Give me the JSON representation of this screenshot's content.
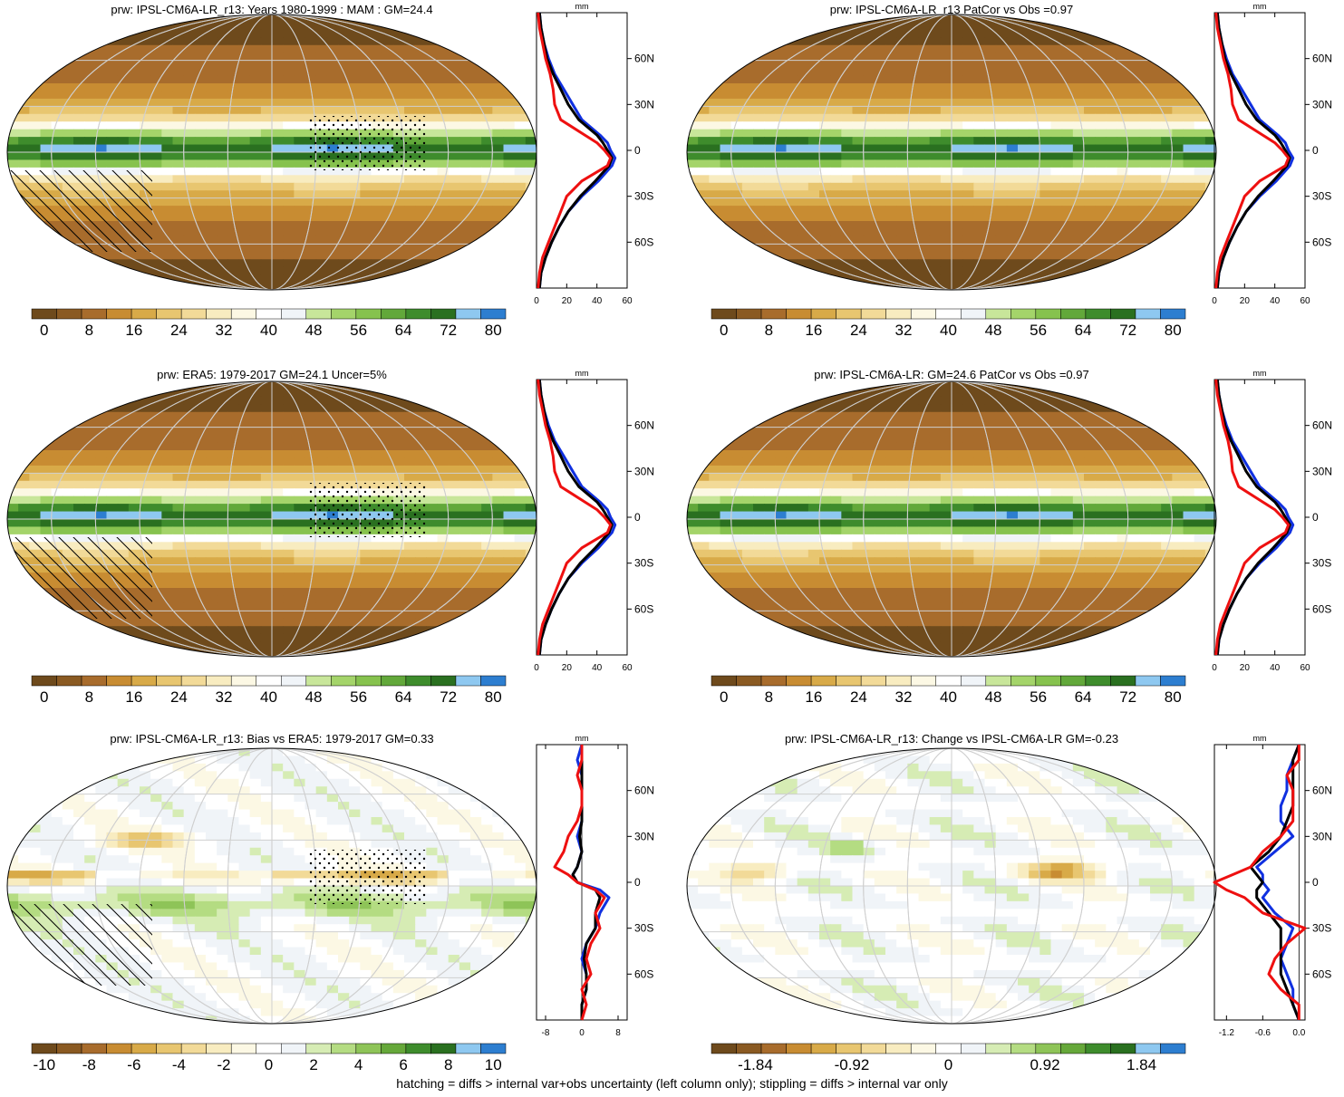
{
  "footnote": "hatching = diffs > internal var+obs uncertainty (left column only); stippling = diffs > internal var only",
  "zonal_lat_labels": [
    "60N",
    "30N",
    "0",
    "30S",
    "60S"
  ],
  "zonal_units": "mm",
  "line_colors": {
    "blue": "#1030e0",
    "black": "#000000",
    "red": "#ee1010"
  },
  "palettes": {
    "abs": [
      "#6e4a1c",
      "#8a5a22",
      "#a86c2c",
      "#c88c32",
      "#d8aa48",
      "#e8c670",
      "#f2da98",
      "#f8ecc0",
      "#fcf8e4",
      "#ffffff",
      "#f0f4f8",
      "#c8e69a",
      "#a4d46a",
      "#86c24e",
      "#62a83a",
      "#3e8c2c",
      "#2a7020",
      "#8ec8f0",
      "#2d7ed0"
    ],
    "diff": [
      "#6e4a1c",
      "#8a5a22",
      "#a86c2c",
      "#c88c32",
      "#d8aa48",
      "#e8c670",
      "#f2da98",
      "#f8ecc0",
      "#fcf8e4",
      "#ffffff",
      "#f0f4f8",
      "#d6ecb4",
      "#b4dc82",
      "#8ec458",
      "#66a83a",
      "#3e8c2c",
      "#2a7020",
      "#8ec8f0",
      "#2d7ed0"
    ]
  },
  "chart_data": [
    {
      "type": "heatmap",
      "title": "prw: IPSL-CM6A-LR_r13: Years 1980-1999 : MAM : GM=24.4",
      "colorbar_labels": [
        "0",
        "8",
        "16",
        "24",
        "32",
        "40",
        "48",
        "56",
        "64",
        "72",
        "80"
      ],
      "palette": "abs",
      "field": "abs",
      "hatch": true,
      "zonal": {
        "type": "line",
        "xlim": [
          0,
          60
        ],
        "xticks": [
          "0",
          "20",
          "40",
          "60"
        ],
        "lat": [
          -90,
          -80,
          -70,
          -60,
          -50,
          -40,
          -30,
          -20,
          -10,
          -5,
          0,
          5,
          10,
          20,
          30,
          40,
          50,
          60,
          70,
          80,
          90
        ],
        "series": [
          {
            "color": "blue",
            "values": [
              2,
              3,
              6,
              10,
              15,
              21,
              30,
              41,
              50,
              52,
              49,
              47,
              42,
              30,
              24,
              18,
              12,
              8,
              5,
              3,
              2
            ]
          },
          {
            "color": "black",
            "values": [
              2,
              3,
              6,
              10,
              15,
              21,
              29,
              39,
              48,
              50,
              47,
              44,
              40,
              28,
              21,
              16,
              11,
              7,
              5,
              3,
              2
            ]
          },
          {
            "color": "red",
            "values": [
              1,
              2,
              4,
              8,
              12,
              16,
              20,
              30,
              47,
              49,
              45,
              40,
              32,
              16,
              12,
              11,
              9,
              6,
              4,
              2,
              1
            ]
          }
        ]
      }
    },
    {
      "type": "heatmap",
      "title": "prw: IPSL-CM6A-LR_r13 PatCor vs Obs =0.97",
      "colorbar_labels": [
        "0",
        "8",
        "16",
        "24",
        "32",
        "40",
        "48",
        "56",
        "64",
        "72",
        "80"
      ],
      "palette": "abs",
      "field": "abs",
      "hatch": false,
      "zonal": {
        "type": "line",
        "xlim": [
          0,
          60
        ],
        "xticks": [
          "0",
          "20",
          "40",
          "60"
        ],
        "lat": [
          -90,
          -80,
          -70,
          -60,
          -50,
          -40,
          -30,
          -20,
          -10,
          -5,
          0,
          5,
          10,
          20,
          30,
          40,
          50,
          60,
          70,
          80,
          90
        ],
        "series": [
          {
            "color": "blue",
            "values": [
              2,
              3,
              6,
              10,
              15,
              21,
              30,
              41,
              50,
              52,
              49,
              47,
              42,
              30,
              24,
              18,
              12,
              8,
              5,
              3,
              2
            ]
          },
          {
            "color": "black",
            "values": [
              2,
              3,
              6,
              10,
              15,
              21,
              29,
              39,
              48,
              50,
              47,
              44,
              40,
              28,
              21,
              16,
              11,
              7,
              5,
              3,
              2
            ]
          },
          {
            "color": "red",
            "values": [
              1,
              2,
              4,
              8,
              12,
              16,
              20,
              30,
              47,
              49,
              45,
              40,
              32,
              16,
              12,
              11,
              9,
              6,
              4,
              2,
              1
            ]
          }
        ]
      }
    },
    {
      "type": "heatmap",
      "title": "prw: ERA5: 1979-2017 GM=24.1 Uncer=5%",
      "colorbar_labels": [
        "0",
        "8",
        "16",
        "24",
        "32",
        "40",
        "48",
        "56",
        "64",
        "72",
        "80"
      ],
      "palette": "abs",
      "field": "abs",
      "hatch": true,
      "zonal": {
        "type": "line",
        "xlim": [
          0,
          60
        ],
        "xticks": [
          "0",
          "20",
          "40",
          "60"
        ],
        "lat": [
          -90,
          -80,
          -70,
          -60,
          -50,
          -40,
          -30,
          -20,
          -10,
          -5,
          0,
          5,
          10,
          20,
          30,
          40,
          50,
          60,
          70,
          80,
          90
        ],
        "series": [
          {
            "color": "blue",
            "values": [
              2,
              3,
              6,
              10,
              15,
              21,
              30,
              41,
              50,
              52,
              49,
              47,
              42,
              30,
              24,
              18,
              12,
              8,
              5,
              3,
              2
            ]
          },
          {
            "color": "black",
            "values": [
              2,
              3,
              6,
              10,
              15,
              21,
              29,
              39,
              48,
              50,
              47,
              44,
              40,
              28,
              21,
              16,
              11,
              7,
              5,
              3,
              2
            ]
          },
          {
            "color": "red",
            "values": [
              1,
              2,
              4,
              8,
              12,
              16,
              20,
              30,
              47,
              49,
              45,
              40,
              32,
              16,
              12,
              11,
              9,
              6,
              4,
              2,
              1
            ]
          }
        ]
      }
    },
    {
      "type": "heatmap",
      "title": "prw: IPSL-CM6A-LR: GM=24.6 PatCor vs Obs =0.97",
      "colorbar_labels": [
        "0",
        "8",
        "16",
        "24",
        "32",
        "40",
        "48",
        "56",
        "64",
        "72",
        "80"
      ],
      "palette": "abs",
      "field": "abs",
      "hatch": false,
      "zonal": {
        "type": "line",
        "xlim": [
          0,
          60
        ],
        "xticks": [
          "0",
          "20",
          "40",
          "60"
        ],
        "lat": [
          -90,
          -80,
          -70,
          -60,
          -50,
          -40,
          -30,
          -20,
          -10,
          -5,
          0,
          5,
          10,
          20,
          30,
          40,
          50,
          60,
          70,
          80,
          90
        ],
        "series": [
          {
            "color": "blue",
            "values": [
              2,
              3,
              6,
              10,
              15,
              21,
              30,
              41,
              50,
              52,
              49,
              47,
              42,
              30,
              24,
              18,
              12,
              8,
              5,
              3,
              2
            ]
          },
          {
            "color": "black",
            "values": [
              2,
              3,
              6,
              10,
              15,
              21,
              29,
              39,
              48,
              50,
              47,
              44,
              40,
              28,
              21,
              16,
              11,
              7,
              5,
              3,
              2
            ]
          },
          {
            "color": "red",
            "values": [
              1,
              2,
              4,
              8,
              12,
              16,
              20,
              30,
              47,
              49,
              45,
              40,
              32,
              16,
              12,
              11,
              9,
              6,
              4,
              2,
              1
            ]
          }
        ]
      }
    },
    {
      "type": "heatmap",
      "title": "prw: IPSL-CM6A-LR_r13: Bias vs ERA5: 1979-2017 GM=0.33",
      "colorbar_labels": [
        "-10",
        "-8",
        "-6",
        "-4",
        "-2",
        "0",
        "2",
        "4",
        "6",
        "8",
        "10"
      ],
      "palette": "diff",
      "field": "bias",
      "hatch": true,
      "zonal": {
        "type": "line",
        "xlim": [
          -10,
          10
        ],
        "xticks": [
          "-8",
          "0",
          "8"
        ],
        "lat": [
          -90,
          -80,
          -70,
          -60,
          -50,
          -40,
          -30,
          -20,
          -10,
          -5,
          0,
          5,
          10,
          20,
          30,
          40,
          50,
          60,
          70,
          80,
          90
        ],
        "series": [
          {
            "color": "blue",
            "values": [
              0,
              0,
              1,
              1,
              0,
              1,
              3,
              4,
              6,
              4,
              -1,
              -2,
              -1,
              0,
              -1,
              0,
              0,
              0,
              0,
              -1,
              0
            ]
          },
          {
            "color": "black",
            "values": [
              0,
              0,
              1,
              1,
              0.5,
              1,
              3,
              3,
              4,
              3,
              -1,
              -2,
              -1,
              0,
              -0.5,
              0,
              0,
              0,
              0,
              0,
              0
            ]
          },
          {
            "color": "red",
            "values": [
              0,
              1,
              0,
              2,
              1,
              2,
              4,
              3,
              5,
              3,
              -1,
              -3,
              -6,
              -4,
              -3,
              -1,
              0,
              0,
              -1,
              0,
              0
            ]
          }
        ]
      }
    },
    {
      "type": "heatmap",
      "title": "prw: IPSL-CM6A-LR_r13: Change vs IPSL-CM6A-LR GM=-0.23",
      "colorbar_labels": [
        "-1.84",
        "-0.92",
        "0",
        "0.92",
        "1.84"
      ],
      "palette": "diff",
      "field": "change",
      "hatch": false,
      "zonal": {
        "type": "line",
        "xlim": [
          -1.4,
          0.1
        ],
        "xticks": [
          "-1.2",
          "-0.6",
          "0.0"
        ],
        "lat": [
          -90,
          -80,
          -70,
          -60,
          -50,
          -40,
          -30,
          -20,
          -10,
          -5,
          0,
          5,
          10,
          20,
          30,
          40,
          50,
          60,
          70,
          80,
          90
        ],
        "series": [
          {
            "color": "blue",
            "values": [
              0,
              -0.1,
              -0.1,
              -0.2,
              -0.3,
              -0.2,
              -0.1,
              -0.4,
              -0.6,
              -0.5,
              -0.6,
              -0.6,
              -0.7,
              -0.4,
              -0.1,
              -0.3,
              -0.3,
              -0.2,
              -0.2,
              -0.1,
              0
            ]
          },
          {
            "color": "black",
            "values": [
              0,
              -0.1,
              -0.2,
              -0.3,
              -0.3,
              -0.3,
              -0.3,
              -0.5,
              -0.7,
              -0.7,
              -0.6,
              -0.7,
              -0.8,
              -0.5,
              -0.3,
              -0.2,
              -0.1,
              -0.1,
              -0.1,
              -0.1,
              0
            ]
          },
          {
            "color": "red",
            "values": [
              0,
              0,
              -0.3,
              -0.5,
              -0.4,
              -0.2,
              0.1,
              -0.6,
              -0.9,
              -1.2,
              -1.4,
              -1.1,
              -0.8,
              -0.6,
              -0.3,
              -0.1,
              -0.1,
              -0.1,
              -0.2,
              0,
              0
            ]
          }
        ]
      }
    }
  ]
}
